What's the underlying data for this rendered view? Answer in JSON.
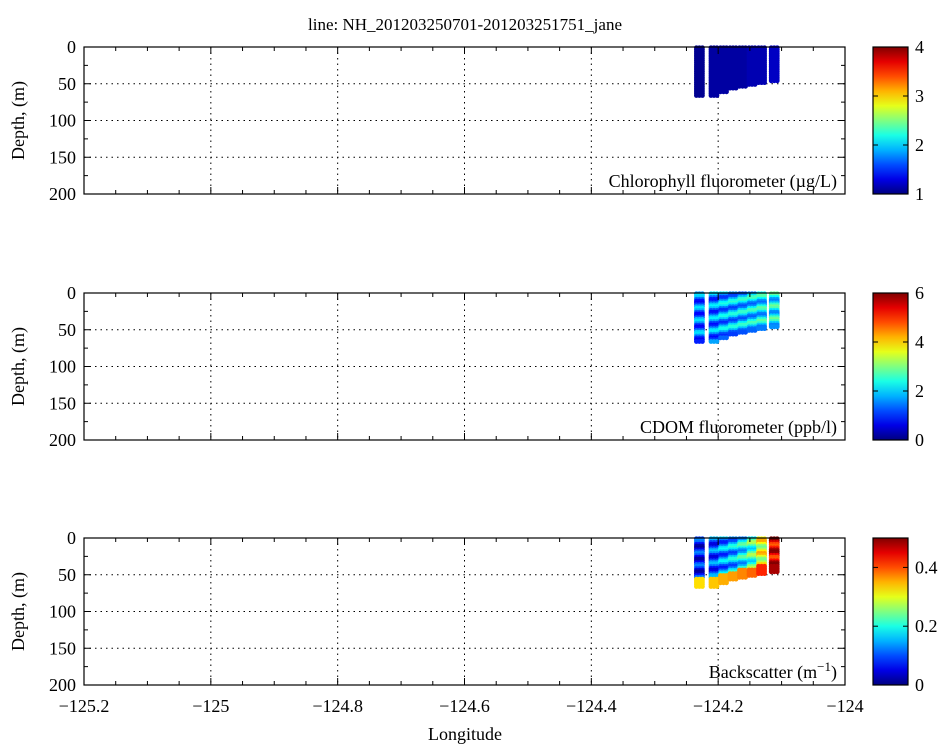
{
  "figure": {
    "title": "line: NH_201203250701-201203251751_jane",
    "xlabel": "Longitude"
  },
  "chart_data": [
    {
      "type": "scatter",
      "panel": "chlorophyll",
      "label": "Chlorophyll fluorometer (µg/L)",
      "xlabel": "Longitude",
      "ylabel": "Depth, (m)",
      "xlim": [
        -125.2,
        -124.0
      ],
      "ylim": [
        200,
        0
      ],
      "xticks": [
        -125.2,
        -125,
        -124.8,
        -124.6,
        -124.4,
        -124.2,
        -124
      ],
      "yticks": [
        0,
        50,
        100,
        150,
        200
      ],
      "grid": true,
      "colorbar": {
        "range": [
          1,
          4
        ],
        "ticks": [
          1,
          2,
          3,
          4
        ],
        "colormap": "jet"
      },
      "profiles": [
        {
          "lon": -124.228,
          "depth_max": 67,
          "value": 1.05
        },
        {
          "lon": -124.205,
          "depth_max": 66,
          "value": 1.1
        },
        {
          "lon": -124.19,
          "depth_max": 62,
          "value": 1.1
        },
        {
          "lon": -124.175,
          "depth_max": 58,
          "value": 1.1
        },
        {
          "lon": -124.16,
          "depth_max": 55,
          "value": 1.1
        },
        {
          "lon": -124.145,
          "depth_max": 53,
          "value": 1.15
        },
        {
          "lon": -124.13,
          "depth_max": 50,
          "value": 1.15
        },
        {
          "lon": -124.11,
          "depth_max": 48,
          "value": 1.2
        }
      ]
    },
    {
      "type": "scatter",
      "panel": "cdom",
      "label": "CDOM fluorometer (ppb/l)",
      "xlabel": "Longitude",
      "ylabel": "Depth, (m)",
      "xlim": [
        -125.2,
        -124.0
      ],
      "ylim": [
        200,
        0
      ],
      "xticks": [
        -125.2,
        -125,
        -124.8,
        -124.6,
        -124.4,
        -124.2,
        -124
      ],
      "yticks": [
        0,
        50,
        100,
        150,
        200
      ],
      "grid": true,
      "colorbar": {
        "range": [
          0,
          6
        ],
        "ticks": [
          0,
          2,
          4,
          6
        ],
        "colormap": "jet"
      },
      "profiles": [
        {
          "lon": -124.228,
          "depth_max": 67,
          "value": 1.4
        },
        {
          "lon": -124.205,
          "depth_max": 66,
          "value": 1.5
        },
        {
          "lon": -124.19,
          "depth_max": 62,
          "value": 1.7
        },
        {
          "lon": -124.175,
          "depth_max": 58,
          "value": 1.8
        },
        {
          "lon": -124.16,
          "depth_max": 55,
          "value": 1.9
        },
        {
          "lon": -124.145,
          "depth_max": 53,
          "value": 2.0
        },
        {
          "lon": -124.13,
          "depth_max": 50,
          "value": 2.1
        },
        {
          "lon": -124.11,
          "depth_max": 48,
          "value": 2.2
        }
      ]
    },
    {
      "type": "scatter",
      "panel": "backscatter",
      "label": "Backscatter (m",
      "label_sup": "−1",
      "label_end": ")",
      "xlabel": "Longitude",
      "ylabel": "Depth, (m)",
      "xlim": [
        -125.2,
        -124.0
      ],
      "ylim": [
        200,
        0
      ],
      "xticks": [
        -125.2,
        -125,
        -124.8,
        -124.6,
        -124.4,
        -124.2,
        -124
      ],
      "yticks": [
        0,
        50,
        100,
        150,
        200
      ],
      "grid": true,
      "colorbar": {
        "range": [
          0,
          0.5
        ],
        "ticks": [
          0,
          0.2,
          0.4
        ],
        "colormap": "jet"
      },
      "profiles": [
        {
          "lon": -124.228,
          "depth_max": 67,
          "value": 0.07
        },
        {
          "lon": -124.205,
          "depth_max": 66,
          "value": 0.1
        },
        {
          "lon": -124.19,
          "depth_max": 62,
          "value": 0.13
        },
        {
          "lon": -124.175,
          "depth_max": 58,
          "value": 0.15
        },
        {
          "lon": -124.16,
          "depth_max": 55,
          "value": 0.18
        },
        {
          "lon": -124.145,
          "depth_max": 53,
          "value": 0.22
        },
        {
          "lon": -124.13,
          "depth_max": 50,
          "value": 0.3
        },
        {
          "lon": -124.11,
          "depth_max": 48,
          "value": 0.45
        }
      ]
    }
  ]
}
